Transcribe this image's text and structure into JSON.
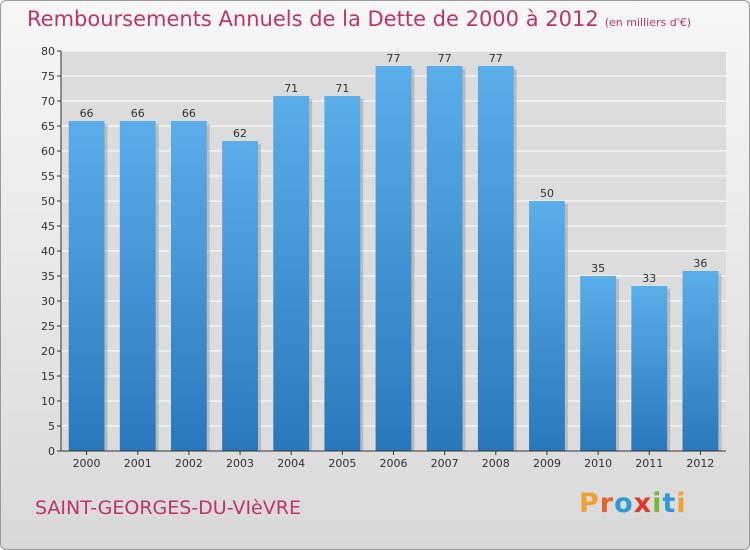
{
  "chart_data": {
    "type": "bar",
    "title": "Remboursements Annuels de la Dette de 2000 à 2012",
    "subtitle": "(en milliers d'€)",
    "categories": [
      "2000",
      "2001",
      "2002",
      "2003",
      "2004",
      "2005",
      "2006",
      "2007",
      "2008",
      "2009",
      "2010",
      "2011",
      "2012"
    ],
    "values": [
      66,
      66,
      66,
      62,
      71,
      71,
      77,
      77,
      77,
      50,
      35,
      33,
      36
    ],
    "ylim": [
      0,
      80
    ],
    "yticks": [
      0,
      5,
      10,
      15,
      20,
      25,
      30,
      35,
      40,
      45,
      50,
      55,
      60,
      65,
      70,
      75,
      80
    ],
    "grid": true,
    "bar_color": "#3a8fd4"
  },
  "commune": "SAINT-GEORGES-DU-VIèVRE",
  "logo": {
    "text": "Proxiti",
    "letter_colors": [
      "#f0a22e",
      "#e3642a",
      "#2f9ad6",
      "#e2372b",
      "#7cb82f",
      "#2f9ad6",
      "#f0a22e"
    ]
  },
  "colors": {
    "title": "#c0336a",
    "axis": "#333333"
  }
}
